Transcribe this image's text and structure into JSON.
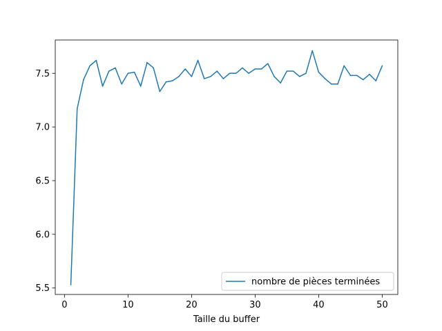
{
  "chart_data": {
    "type": "line",
    "title": "",
    "xlabel": "Taille du buffer",
    "ylabel": "",
    "xlim": [
      -1.45,
      52.45
    ],
    "ylim": [
      5.44,
      7.81
    ],
    "xticks": [
      0,
      10,
      20,
      30,
      40,
      50
    ],
    "xtick_labels": [
      "0",
      "10",
      "20",
      "30",
      "40",
      "50"
    ],
    "yticks": [
      5.5,
      6.0,
      6.5,
      7.0,
      7.5
    ],
    "ytick_labels": [
      "5.5",
      "6.0",
      "6.5",
      "7.0",
      "7.5"
    ],
    "grid": false,
    "legend_position": "lower-right",
    "series": [
      {
        "name": "nombre de pièces terminées",
        "color": "#1f77b4",
        "x": [
          1,
          2,
          3,
          4,
          5,
          6,
          7,
          8,
          9,
          10,
          11,
          12,
          13,
          14,
          15,
          16,
          17,
          18,
          19,
          20,
          21,
          22,
          23,
          24,
          25,
          26,
          27,
          28,
          29,
          30,
          31,
          32,
          33,
          34,
          35,
          36,
          37,
          38,
          39,
          40,
          41,
          42,
          43,
          44,
          45,
          46,
          47,
          48,
          49,
          50
        ],
        "y": [
          5.53,
          7.17,
          7.44,
          7.57,
          7.62,
          7.38,
          7.52,
          7.55,
          7.4,
          7.5,
          7.51,
          7.38,
          7.6,
          7.55,
          7.33,
          7.42,
          7.43,
          7.47,
          7.54,
          7.47,
          7.62,
          7.45,
          7.47,
          7.52,
          7.45,
          7.5,
          7.5,
          7.55,
          7.5,
          7.54,
          7.54,
          7.59,
          7.47,
          7.41,
          7.52,
          7.52,
          7.47,
          7.5,
          7.71,
          7.51,
          7.45,
          7.4,
          7.4,
          7.57,
          7.48,
          7.48,
          7.44,
          7.49,
          7.43,
          7.57
        ]
      }
    ]
  }
}
